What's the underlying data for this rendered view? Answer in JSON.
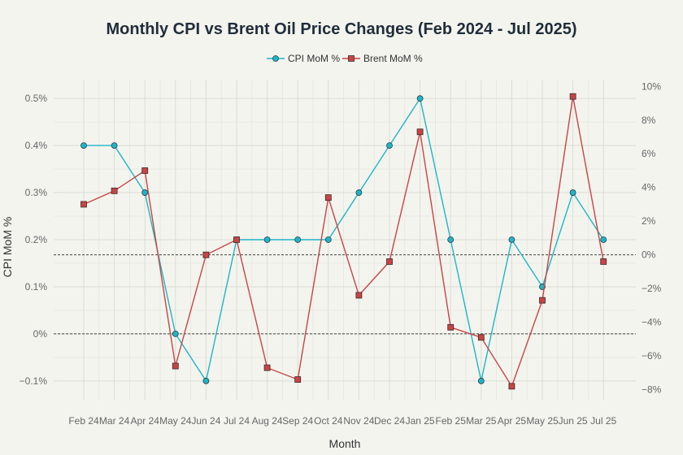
{
  "chart_data": {
    "type": "line",
    "title": "Monthly CPI vs Brent Oil Price Changes (Feb 2024 - Jul 2025)",
    "xlabel": "Month",
    "ylabel": "CPI MoM %",
    "y2label": "",
    "categories": [
      "Feb 24",
      "Mar 24",
      "Apr 24",
      "May 24",
      "Jun 24",
      "Jul 24",
      "Aug 24",
      "Sep 24",
      "Oct 24",
      "Nov 24",
      "Dec 24",
      "Jan 25",
      "Feb 25",
      "Mar 25",
      "Apr 25",
      "May 25",
      "Jun 25",
      "Jul 25"
    ],
    "ylim": [
      -0.14,
      0.54
    ],
    "y2lim": [
      -8.6,
      10.4
    ],
    "yticks": [
      -0.1,
      0,
      0.1,
      0.2,
      0.3,
      0.4,
      0.5
    ],
    "ytick_labels": [
      "−0.1%",
      "0%",
      "0.1%",
      "0.2%",
      "0.3%",
      "0.4%",
      "0.5%"
    ],
    "y2ticks": [
      -8,
      -6,
      -4,
      -2,
      0,
      2,
      4,
      6,
      8,
      10
    ],
    "y2tick_labels": [
      "−8%",
      "−6%",
      "−4%",
      "−2%",
      "0%",
      "2%",
      "4%",
      "6%",
      "8%",
      "10%"
    ],
    "grid": true,
    "legend_position": "top-center",
    "series": [
      {
        "name": "CPI MoM %",
        "axis": "left",
        "marker": "circle",
        "color": "#1fb5c6",
        "values": [
          0.4,
          0.4,
          0.3,
          0.0,
          -0.1,
          0.2,
          0.2,
          0.2,
          0.2,
          0.3,
          0.4,
          0.5,
          0.2,
          -0.1,
          0.2,
          0.1,
          0.3,
          0.2
        ]
      },
      {
        "name": "Brent MoM %",
        "axis": "right",
        "marker": "square",
        "color": "#c84545",
        "values": [
          3.0,
          3.8,
          5.0,
          -6.6,
          0.0,
          0.9,
          -6.7,
          -7.4,
          3.4,
          -2.4,
          -0.4,
          7.3,
          -4.3,
          -4.9,
          -7.8,
          -2.7,
          9.4,
          -0.4
        ]
      }
    ]
  }
}
